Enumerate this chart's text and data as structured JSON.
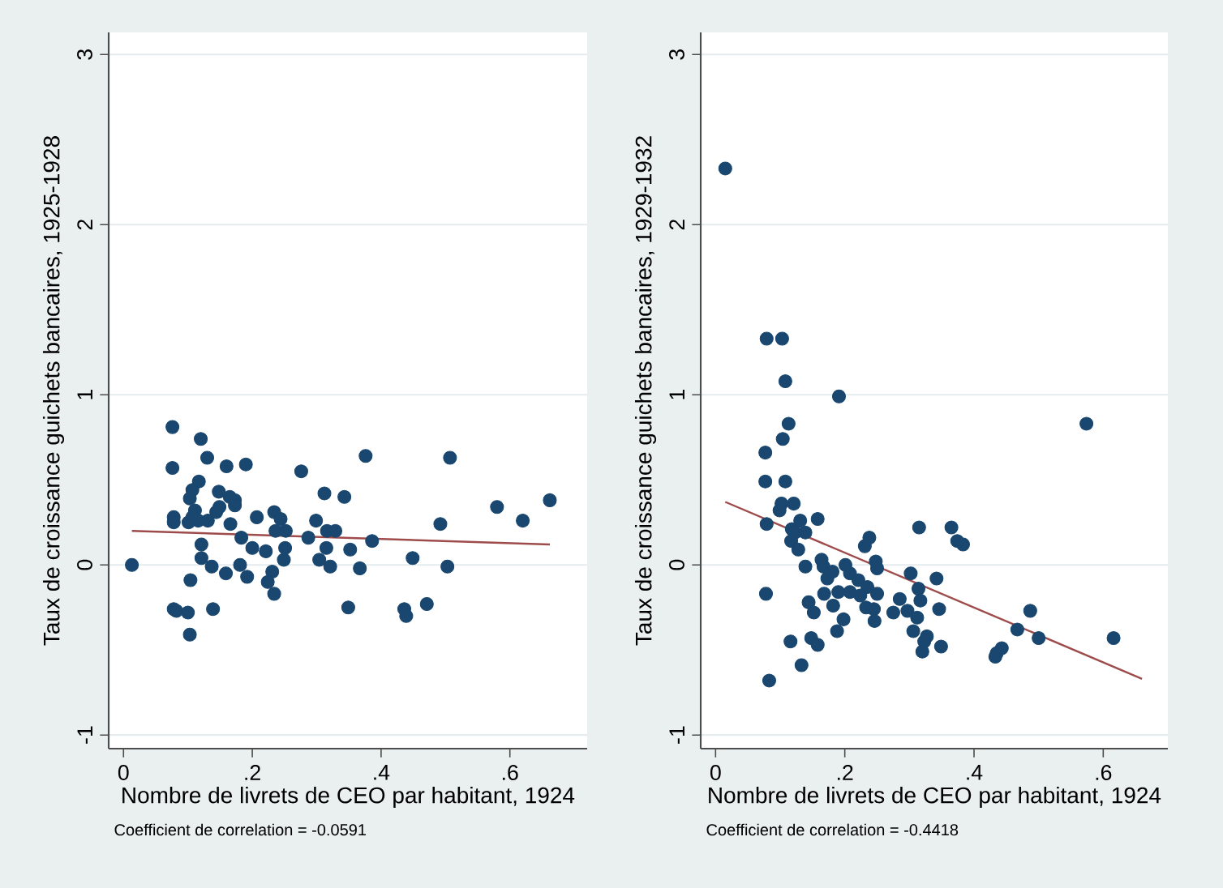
{
  "chart_data": [
    {
      "type": "scatter",
      "xlabel": "Nombre de livrets de CEO par habitant, 1924",
      "ylabel": "Taux de croissance guichets bancaires, 1925-1928",
      "annotations": [
        "Coefficient de correlation = -0.0591"
      ],
      "xlim": [
        -0.023,
        0.72
      ],
      "ylim": [
        -1.08,
        3.13
      ],
      "xticks": [
        0,
        {
          "value": 0.2,
          "label": ".2"
        },
        {
          "value": 0.4,
          "label": ".4"
        },
        {
          "value": 0.6,
          "label": ".6"
        }
      ],
      "yticks": [
        -1,
        0,
        1,
        2,
        3
      ],
      "grid": "y",
      "marker": "circle",
      "series": [
        {
          "color": "#1a476f",
          "x": [
            0.013,
            0.076,
            0.076,
            0.12,
            0.13,
            0.16,
            0.19,
            0.276,
            0.376,
            0.507,
            0.117,
            0.107,
            0.103,
            0.148,
            0.165,
            0.173,
            0.173,
            0.149,
            0.144,
            0.111,
            0.107,
            0.078,
            0.078,
            0.101,
            0.116,
            0.131,
            0.166,
            0.207,
            0.234,
            0.244,
            0.312,
            0.343,
            0.299,
            0.236,
            0.252,
            0.287,
            0.316,
            0.329,
            0.386,
            0.183,
            0.121,
            0.2,
            0.221,
            0.251,
            0.315,
            0.352,
            0.121,
            0.249,
            0.304,
            0.449,
            0.137,
            0.181,
            0.321,
            0.367,
            0.503,
            0.159,
            0.192,
            0.231,
            0.104,
            0.224,
            0.234,
            0.492,
            0.58,
            0.62,
            0.662,
            0.078,
            0.082,
            0.1,
            0.139,
            0.349,
            0.436,
            0.439,
            0.471,
            0.103
          ],
          "values": [
            0,
            0.81,
            0.57,
            0.74,
            0.63,
            0.58,
            0.59,
            0.55,
            0.64,
            0.63,
            0.49,
            0.44,
            0.39,
            0.43,
            0.4,
            0.38,
            0.35,
            0.34,
            0.31,
            0.32,
            0.28,
            0.28,
            0.25,
            0.25,
            0.26,
            0.26,
            0.24,
            0.28,
            0.31,
            0.27,
            0.42,
            0.4,
            0.26,
            0.2,
            0.2,
            0.16,
            0.2,
            0.2,
            0.14,
            0.16,
            0.12,
            0.1,
            0.08,
            0.1,
            0.1,
            0.09,
            0.04,
            0.03,
            0.03,
            0.04,
            -0.01,
            0,
            -0.01,
            -0.02,
            -0.01,
            -0.05,
            -0.07,
            -0.04,
            -0.09,
            -0.1,
            -0.17,
            0.24,
            0.34,
            0.26,
            0.38,
            -0.26,
            -0.27,
            -0.28,
            -0.26,
            -0.25,
            -0.26,
            -0.3,
            -0.23,
            -0.41
          ]
        },
        {
          "type": "line",
          "marker": "none",
          "color": "#9e4b4b",
          "x": [
            0.013,
            0.662
          ],
          "values": [
            0.2,
            0.12
          ]
        }
      ]
    },
    {
      "type": "scatter",
      "xlabel": "Nombre de livrets de CEO par habitant, 1924",
      "ylabel": "Taux de croissance guichets bancaires, 1929-1932",
      "annotations": [
        "Coefficient de correlation = -0.4418"
      ],
      "xlim": [
        -0.023,
        0.7
      ],
      "ylim": [
        -1.08,
        3.13
      ],
      "xticks": [
        0,
        {
          "value": 0.2,
          "label": ".2"
        },
        {
          "value": 0.4,
          "label": ".4"
        },
        {
          "value": 0.6,
          "label": ".6"
        }
      ],
      "yticks": [
        -1,
        0,
        1,
        2,
        3
      ],
      "grid": "y",
      "marker": "circle",
      "series": [
        {
          "color": "#1a476f",
          "x": [
            0.015,
            0.079,
            0.103,
            0.108,
            0.191,
            0.113,
            0.104,
            0.077,
            0.077,
            0.108,
            0.102,
            0.121,
            0.099,
            0.079,
            0.131,
            0.158,
            0.118,
            0.123,
            0.139,
            0.117,
            0.128,
            0.315,
            0.365,
            0.374,
            0.383,
            0.238,
            0.231,
            0.574,
            0.139,
            0.164,
            0.167,
            0.181,
            0.201,
            0.208,
            0.173,
            0.221,
            0.235,
            0.248,
            0.25,
            0.302,
            0.342,
            0.314,
            0.317,
            0.25,
            0.168,
            0.19,
            0.208,
            0.224,
            0.285,
            0.078,
            0.144,
            0.182,
            0.152,
            0.233,
            0.245,
            0.275,
            0.297,
            0.312,
            0.346,
            0.198,
            0.246,
            0.188,
            0.306,
            0.327,
            0.323,
            0.349,
            0.32,
            0.148,
            0.158,
            0.116,
            0.133,
            0.083,
            0.487,
            0.467,
            0.5,
            0.443,
            0.435,
            0.433,
            0.616
          ],
          "values": [
            2.33,
            1.33,
            1.33,
            1.08,
            0.99,
            0.83,
            0.74,
            0.66,
            0.49,
            0.49,
            0.36,
            0.36,
            0.32,
            0.24,
            0.26,
            0.27,
            0.21,
            0.19,
            0.19,
            0.14,
            0.09,
            0.22,
            0.22,
            0.14,
            0.12,
            0.16,
            0.11,
            0.83,
            -0.01,
            0.03,
            -0.01,
            -0.04,
            0,
            -0.05,
            -0.08,
            -0.09,
            -0.13,
            0.02,
            -0.02,
            -0.05,
            -0.08,
            -0.14,
            -0.21,
            -0.17,
            -0.17,
            -0.16,
            -0.16,
            -0.18,
            -0.2,
            -0.17,
            -0.22,
            -0.24,
            -0.28,
            -0.25,
            -0.26,
            -0.28,
            -0.27,
            -0.31,
            -0.26,
            -0.32,
            -0.33,
            -0.39,
            -0.39,
            -0.42,
            -0.45,
            -0.48,
            -0.51,
            -0.43,
            -0.47,
            -0.45,
            -0.59,
            -0.68,
            -0.27,
            -0.38,
            -0.43,
            -0.49,
            -0.52,
            -0.54,
            -0.43
          ]
        },
        {
          "type": "line",
          "marker": "none",
          "color": "#9e4b4b",
          "x": [
            0.015,
            0.66
          ],
          "values": [
            0.37,
            -0.67
          ]
        }
      ]
    }
  ]
}
